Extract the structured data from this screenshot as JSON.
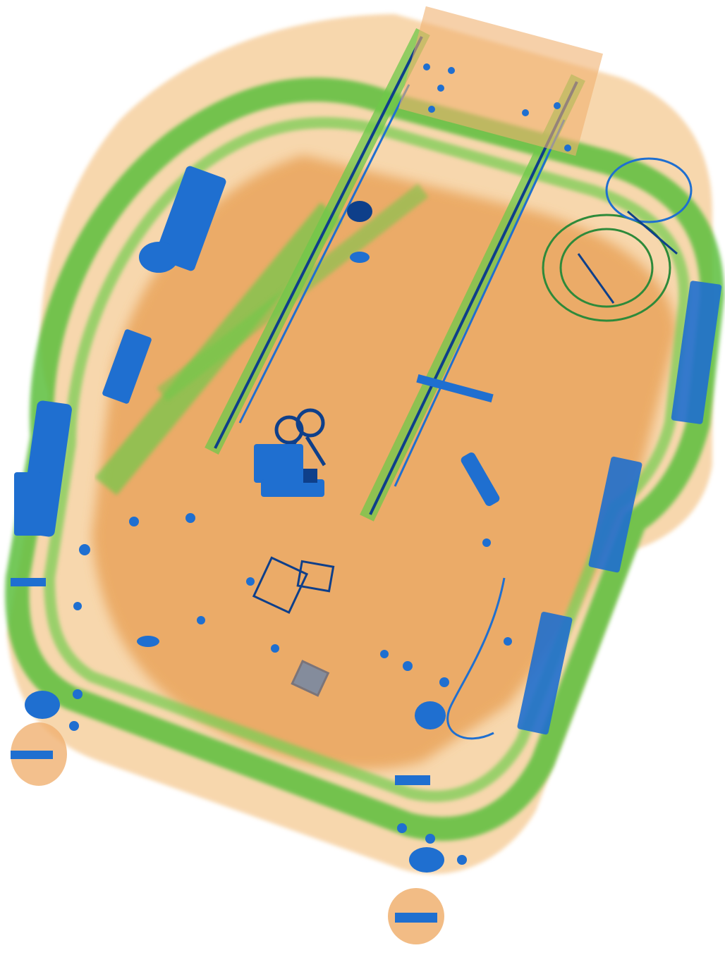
{
  "scan": {
    "subject": "suitcase-xray-scan",
    "palette": {
      "background": "#ffffff",
      "organic_light": "#f7d3a5",
      "organic": "#f0b070",
      "organic_dense": "#e39a4e",
      "mixed": "#5cbf3e",
      "mixed_light": "#9ed676",
      "metal": "#1f6fd0",
      "metal_dark": "#0e3f8a"
    },
    "visible_objects": [
      "telescopic-handle-rails",
      "shell-frame-ring",
      "wheel-assemblies",
      "scissors",
      "zipper-pulls",
      "circuit-device",
      "latches",
      "hinge-brackets"
    ]
  }
}
